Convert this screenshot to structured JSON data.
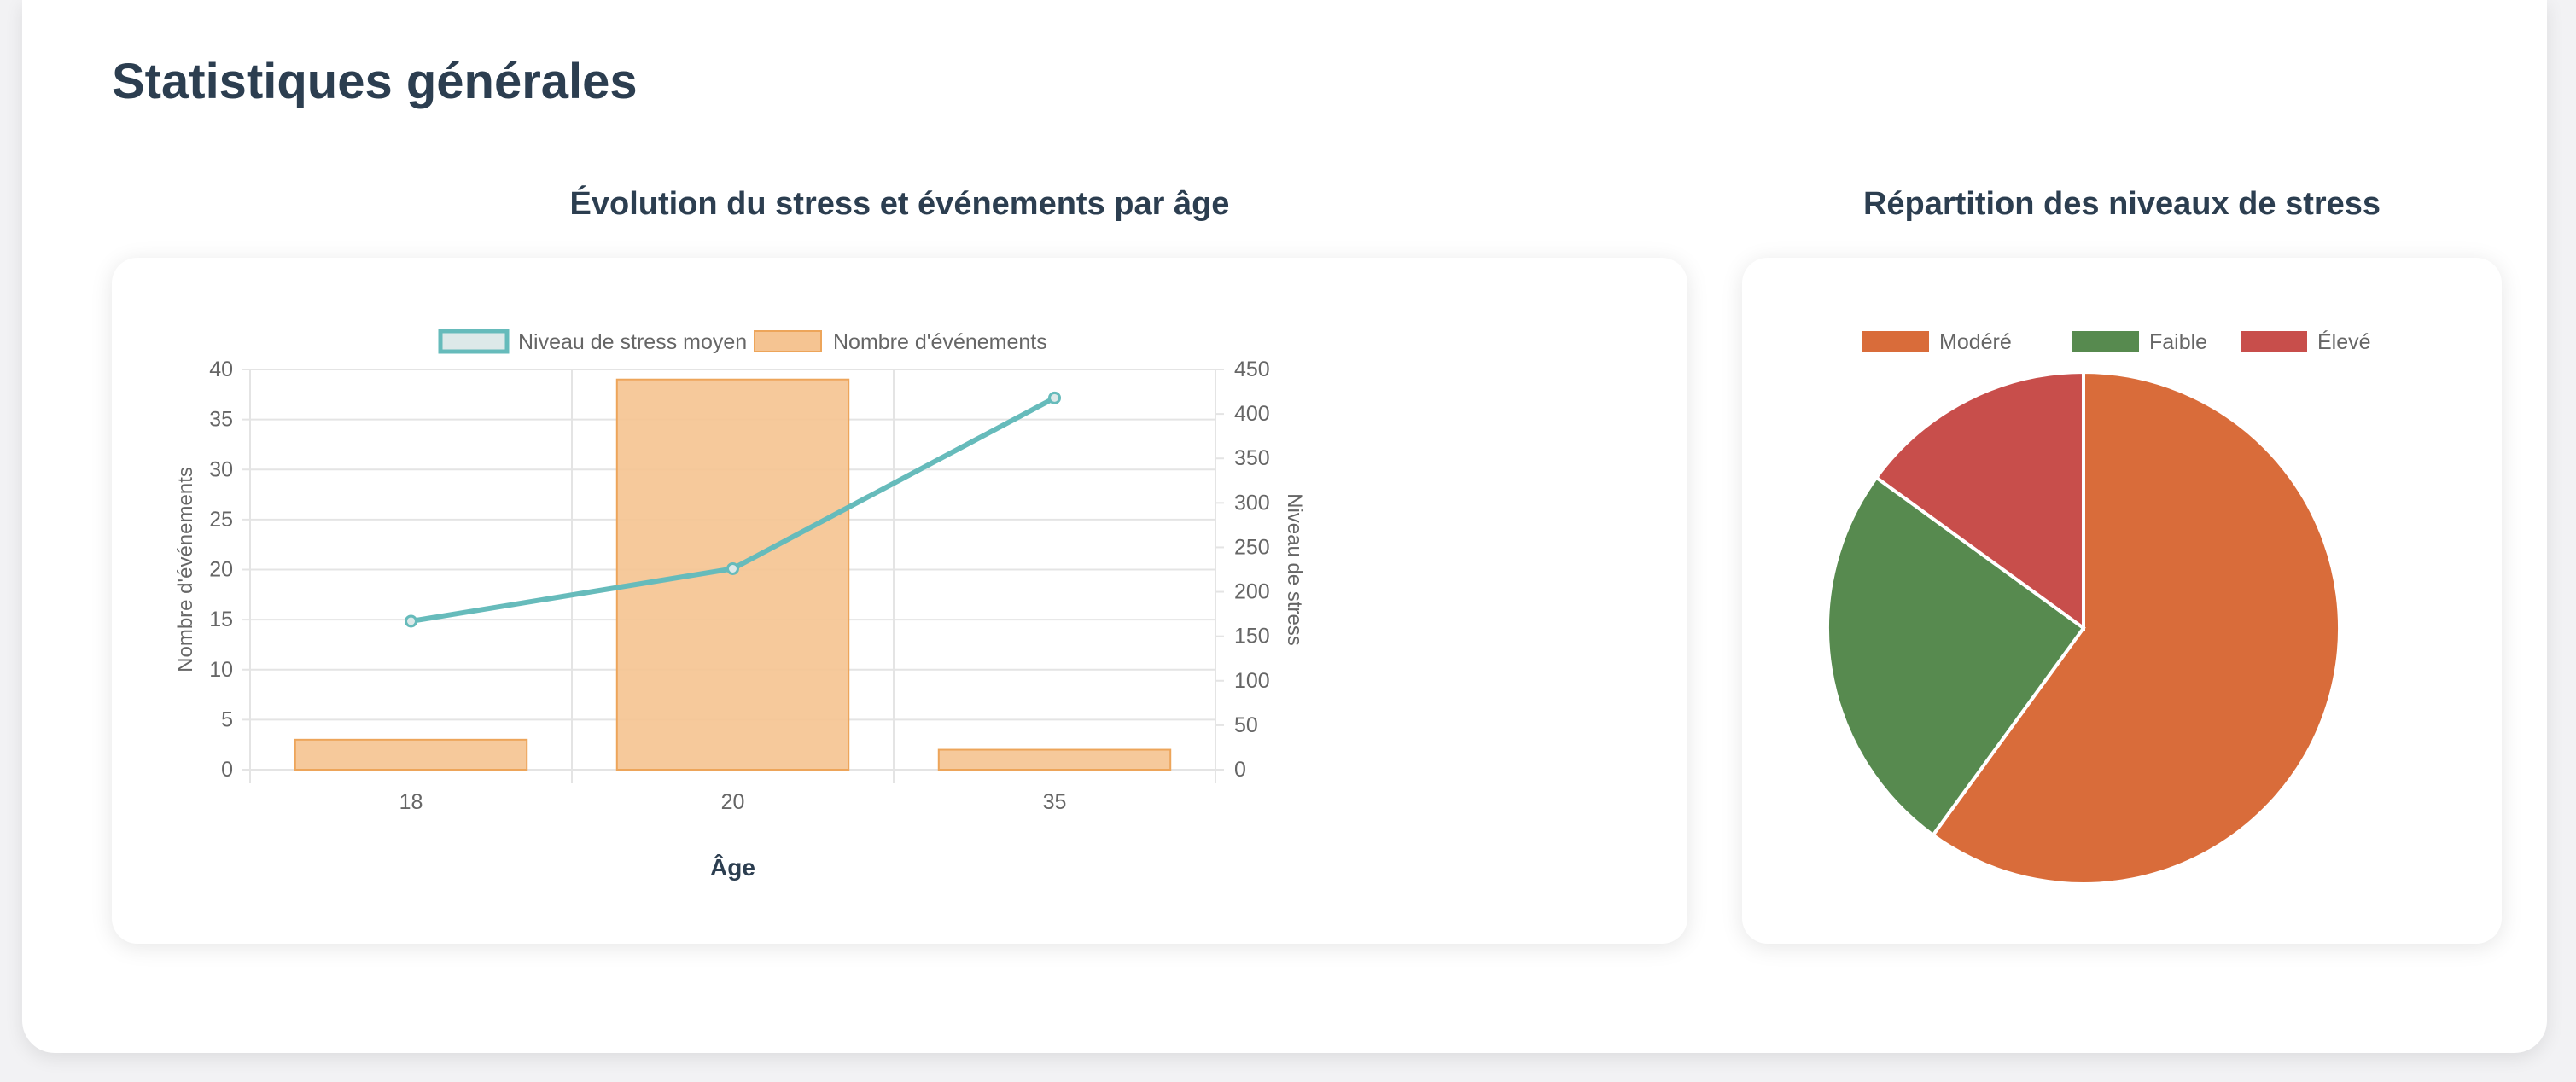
{
  "page": {
    "title": "Statistiques générales"
  },
  "colors": {
    "line": "#66bbbb",
    "bar_fill": "#f5c492",
    "bar_stroke": "#eda55a",
    "text": "#2c3e50",
    "tick": "#666666",
    "grid": "#e4e4e4"
  },
  "chart_data": [
    {
      "type": "bar",
      "title": "Évolution du stress et événements par âge",
      "xlabel": "Âge",
      "ylabel_left": "Nombre d'événements",
      "ylabel_right": "Niveau de stress",
      "categories": [
        "18",
        "20",
        "35"
      ],
      "ylim_left": [
        0,
        40
      ],
      "ylim_right": [
        0,
        450
      ],
      "yticks_left": [
        "0",
        "5",
        "10",
        "15",
        "20",
        "25",
        "30",
        "35",
        "40"
      ],
      "yticks_right": [
        "0",
        "50",
        "100",
        "150",
        "200",
        "250",
        "300",
        "350",
        "400",
        "450"
      ],
      "grid": true,
      "legend_position": "top",
      "series": [
        {
          "name": "Niveau de stress moyen",
          "type": "line",
          "axis": "right",
          "values": [
            167,
            226,
            418
          ],
          "color": "#66bbbb"
        },
        {
          "name": "Nombre d'événements",
          "type": "bar",
          "axis": "left",
          "values": [
            3,
            39,
            2
          ],
          "color": "#f5c492"
        }
      ]
    },
    {
      "type": "pie",
      "title": "Répartition des niveaux de stress",
      "legend_position": "top",
      "labels": [
        "Modéré",
        "Faible",
        "Élevé"
      ],
      "values": [
        60,
        25,
        15
      ],
      "colors": [
        "#d96c3a",
        "#578a4f",
        "#c84e4b"
      ]
    }
  ]
}
